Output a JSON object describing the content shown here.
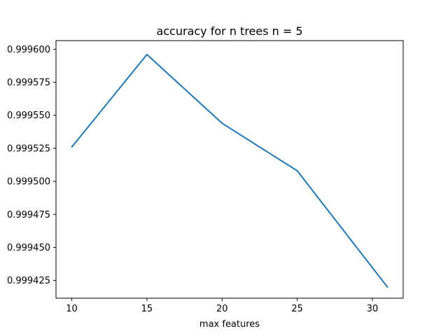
{
  "chart_data": {
    "type": "line",
    "title": "accuracy for n trees n = 5",
    "xlabel": "max features",
    "ylabel": "",
    "xlim": [
      8.95,
      32.05
    ],
    "ylim": [
      0.99941155,
      0.99960655
    ],
    "xticks": [
      10,
      15,
      20,
      25,
      30
    ],
    "xtick_labels": [
      "10",
      "15",
      "20",
      "25",
      "30"
    ],
    "yticks": [
      0.999425,
      0.99945,
      0.999475,
      0.9995,
      0.999525,
      0.99955,
      0.999575,
      0.9996
    ],
    "ytick_labels": [
      "0.999425",
      "0.999450",
      "0.999475",
      "0.999500",
      "0.999525",
      "0.999550",
      "0.999575",
      "0.999600"
    ],
    "grid": false,
    "legend": null,
    "series": [
      {
        "color": "#1f77b4",
        "x": [
          10,
          15,
          20,
          25,
          31
        ],
        "y": [
          0.999526,
          0.999596,
          0.999544,
          0.999508,
          0.99942
        ]
      }
    ]
  }
}
